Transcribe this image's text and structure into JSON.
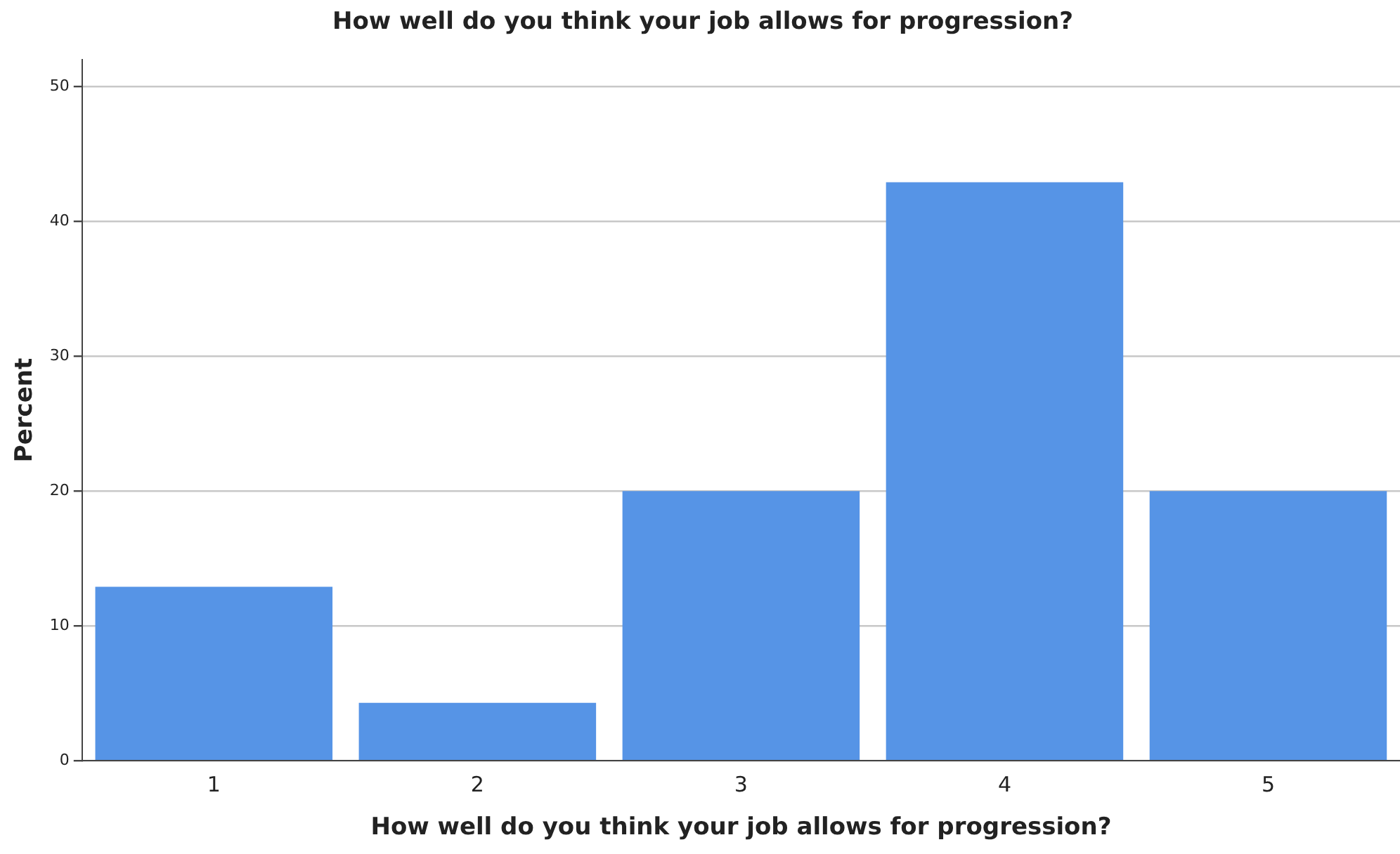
{
  "chart_data": {
    "type": "bar",
    "title": "How well do you think your job allows for progression?",
    "xlabel": "How well do you think your job allows for progression?",
    "ylabel": "Percent",
    "categories": [
      "1",
      "2",
      "3",
      "4",
      "5"
    ],
    "values": [
      12.9,
      4.3,
      20,
      42.9,
      20
    ],
    "color": "#5694e6",
    "ylim": [
      0,
      52
    ],
    "yticks": [
      0,
      10,
      20,
      30,
      40,
      50
    ],
    "grid": "y",
    "legend": false
  }
}
